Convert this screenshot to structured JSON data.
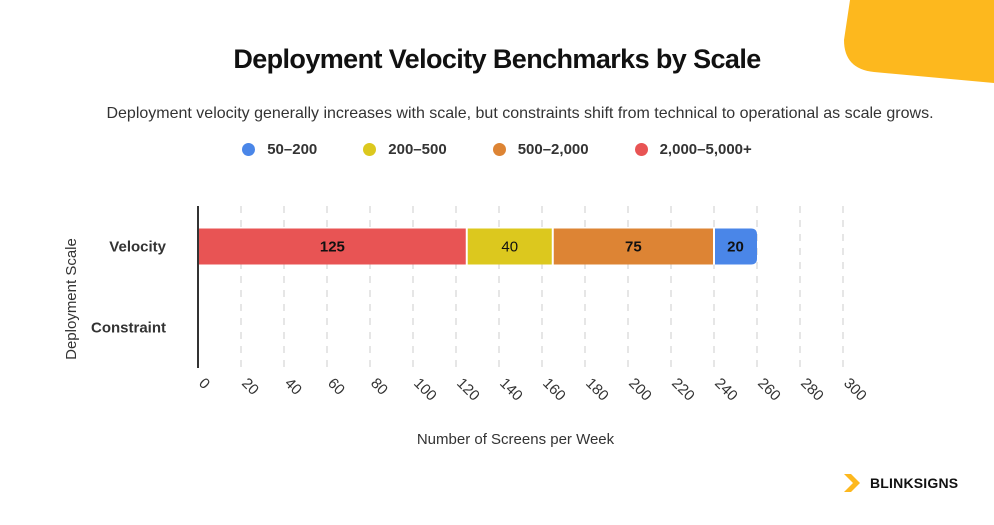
{
  "header": {
    "title": "Deployment Velocity Benchmarks by Scale",
    "subtitle": "Deployment velocity generally increases with scale, but constraints shift from technical to operational as scale grows."
  },
  "brand": {
    "name": "BLINKSIGNS",
    "accent": "#FDB81E"
  },
  "chart_data": {
    "type": "bar",
    "orientation": "horizontal",
    "stacked": true,
    "categories": [
      "Velocity",
      "Constraint"
    ],
    "series": [
      {
        "name": "2,000–5,000+",
        "color": "#E85454",
        "values": [
          125,
          null
        ]
      },
      {
        "name": "200–500",
        "color": "#DCC81E",
        "values": [
          40,
          null
        ]
      },
      {
        "name": "500–2,000",
        "color": "#DD8434",
        "values": [
          75,
          null
        ]
      },
      {
        "name": "50–200",
        "color": "#4A86E8",
        "values": [
          20,
          null
        ]
      }
    ],
    "legend_order": [
      "50–200",
      "200–500",
      "500–2,000",
      "2,000–5,000+"
    ],
    "xlabel": "Number of Screens per Week",
    "ylabel": "Deployment Scale",
    "xlim": [
      0,
      300
    ],
    "xticks": [
      0,
      20,
      40,
      60,
      80,
      100,
      120,
      140,
      160,
      180,
      200,
      220,
      240,
      260,
      280,
      300
    ],
    "grid": "vertical-dashed",
    "legend_position": "top-center"
  }
}
